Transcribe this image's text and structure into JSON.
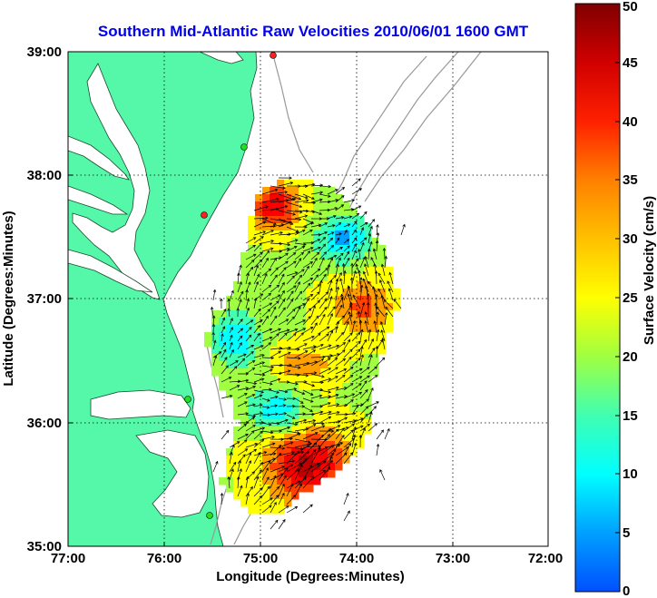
{
  "map": {
    "title": "Southern Mid-Atlantic Raw Velocities 2010/06/01 1600 GMT",
    "xlabel": "Longitude (Degrees:Minutes)",
    "ylabel": "Latitude (Degrees:Minutes)",
    "x_ticks": [
      "77:00",
      "76:00",
      "75:00",
      "74:00",
      "73:00",
      "72:00"
    ],
    "y_ticks": [
      "39:00",
      "38:00",
      "37:00",
      "36:00",
      "35:00"
    ],
    "lon_range": [
      -77,
      -72
    ],
    "lat_range": [
      35,
      39
    ],
    "grid": true,
    "land_color": "#55f7a8",
    "water_color": "#ffffff",
    "title_color": "#0000ee"
  },
  "colorbar": {
    "label": "Surface Velocity (cm/s)",
    "ticks": [
      "0",
      "5",
      "10",
      "15",
      "20",
      "25",
      "30",
      "35",
      "40",
      "45",
      "50"
    ],
    "range": [
      0,
      50
    ],
    "colormap": [
      "#0050ff",
      "#00a0ff",
      "#00ffff",
      "#40ffb0",
      "#a0ff40",
      "#ffff00",
      "#ffa000",
      "#ff4000",
      "#ff0000",
      "#c00000",
      "#800000"
    ]
  },
  "stations": [
    {
      "color": "#ff2020"
    },
    {
      "color": "#20e020"
    },
    {
      "color": "#ff2020"
    },
    {
      "color": "#20e020"
    },
    {
      "color": "#20e020"
    }
  ]
}
